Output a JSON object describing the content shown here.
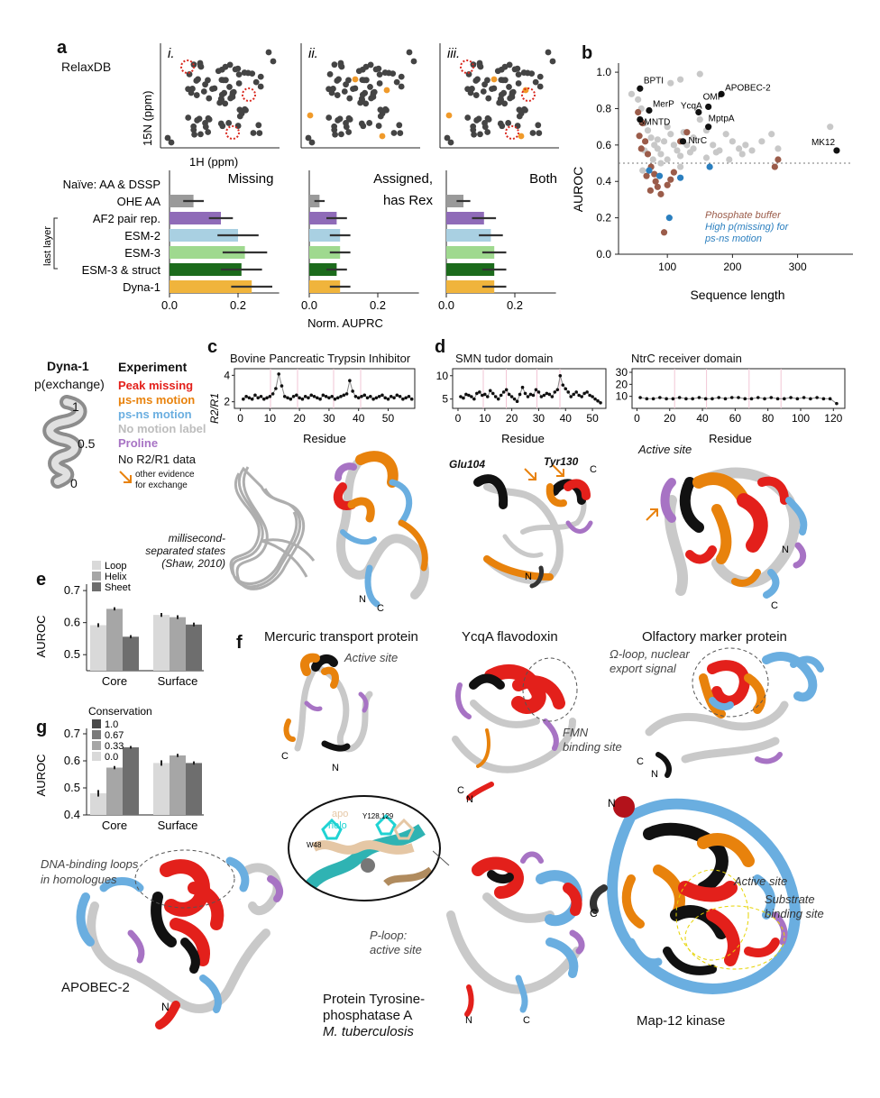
{
  "panel_labels": {
    "a": "a",
    "b": "b",
    "c": "c",
    "d": "d",
    "e": "e",
    "f": "f",
    "g": "g"
  },
  "panel_a": {
    "relaxdb_label": "RelaxDB",
    "spectrum_panels": [
      "i.",
      "ii.",
      "iii."
    ],
    "y_axis_label": "15N (ppm)",
    "x_axis_label": "1H (ppm)",
    "titles": [
      "Missing",
      "Assigned,",
      "has Rex",
      "Both"
    ],
    "methods": [
      "Naïve: AA & DSSP",
      "OHE AA",
      "AF2 pair rep.",
      "ESM-2",
      "ESM-3",
      "ESM-3 & struct",
      "Dyna-1"
    ],
    "bracket_label": "last layer",
    "x_ticks": [
      "0.0",
      "0.2"
    ],
    "x_label": "Norm. AUPRC",
    "colors": [
      "#ffffff",
      "#9a9a9a",
      "#8f6bb8",
      "#a9d0e2",
      "#9fd98f",
      "#1c6b1c",
      "#f0b43c"
    ]
  },
  "chart_data": [
    {
      "type": "bar",
      "orientation": "horizontal",
      "title": "Missing",
      "categories": [
        "Naïve: AA & DSSP",
        "OHE AA",
        "AF2 pair rep.",
        "ESM-2",
        "ESM-3",
        "ESM-3 & struct",
        "Dyna-1"
      ],
      "values": [
        0.0,
        0.07,
        0.15,
        0.2,
        0.22,
        0.21,
        0.24
      ],
      "errors": [
        0.0,
        0.03,
        0.035,
        0.06,
        0.065,
        0.06,
        0.06
      ],
      "xlim": [
        0,
        0.32
      ],
      "xlabel": "Norm. AUPRC"
    },
    {
      "type": "bar",
      "orientation": "horizontal",
      "title": "Assigned, has Rex",
      "categories": [
        "Naïve: AA & DSSP",
        "OHE AA",
        "AF2 pair rep.",
        "ESM-2",
        "ESM-3",
        "ESM-3 & struct",
        "Dyna-1"
      ],
      "values": [
        0.0,
        0.03,
        0.08,
        0.09,
        0.09,
        0.08,
        0.09
      ],
      "errors": [
        0.0,
        0.015,
        0.03,
        0.03,
        0.03,
        0.03,
        0.03
      ],
      "xlim": [
        0,
        0.32
      ],
      "xlabel": "Norm. AUPRC"
    },
    {
      "type": "bar",
      "orientation": "horizontal",
      "title": "Both",
      "categories": [
        "Naïve: AA & DSSP",
        "OHE AA",
        "AF2 pair rep.",
        "ESM-2",
        "ESM-3",
        "ESM-3 & struct",
        "Dyna-1"
      ],
      "values": [
        0.0,
        0.05,
        0.11,
        0.13,
        0.14,
        0.14,
        0.14
      ],
      "errors": [
        0.0,
        0.02,
        0.035,
        0.035,
        0.035,
        0.035,
        0.035
      ],
      "xlim": [
        0,
        0.32
      ],
      "xlabel": "Norm. AUPRC"
    },
    {
      "type": "scatter",
      "xlabel": "Sequence length",
      "ylabel": "AUROC",
      "xlim": [
        25,
        385
      ],
      "ylim": [
        0.0,
        1.05
      ],
      "x_ticks": [
        100,
        200,
        300
      ],
      "y_ticks": [
        0.0,
        0.2,
        0.4,
        0.6,
        0.8,
        1.0
      ],
      "reference_line": 0.5,
      "legend": [
        "Phosphate buffer",
        "High p(missing) for",
        "ps-ns motion"
      ],
      "labeled_points": [
        {
          "label": "BPTI",
          "x": 58,
          "y": 0.91
        },
        {
          "label": "APOBEC-2",
          "x": 183,
          "y": 0.88
        },
        {
          "label": "MerP",
          "x": 72,
          "y": 0.79
        },
        {
          "label": "OMP",
          "x": 163,
          "y": 0.81
        },
        {
          "label": "YcqA",
          "x": 148,
          "y": 0.78
        },
        {
          "label": "SMNTD",
          "x": 58,
          "y": 0.74
        },
        {
          "label": "MptpA",
          "x": 163,
          "y": 0.7
        },
        {
          "label": "NtrC",
          "x": 124,
          "y": 0.62
        },
        {
          "label": "MK12",
          "x": 360,
          "y": 0.57
        }
      ],
      "series": [
        {
          "color": "#c8c8c8",
          "x": [
            45,
            55,
            60,
            65,
            70,
            75,
            80,
            85,
            90,
            95,
            100,
            105,
            110,
            115,
            120,
            125,
            130,
            135,
            140,
            150,
            160,
            170,
            180,
            190,
            200,
            210,
            220,
            230,
            260,
            270,
            350,
            65,
            85,
            100,
            120,
            140,
            160,
            175,
            195,
            215,
            245,
            120,
            150,
            105,
            90,
            78,
            62
          ],
          "y": [
            0.88,
            0.85,
            0.8,
            0.72,
            0.68,
            0.64,
            0.6,
            0.58,
            0.55,
            0.62,
            0.7,
            0.66,
            0.6,
            0.57,
            0.54,
            0.67,
            0.6,
            0.56,
            0.64,
            0.74,
            0.68,
            0.6,
            0.57,
            0.66,
            0.62,
            0.58,
            0.6,
            0.57,
            0.66,
            0.58,
            0.7,
            0.57,
            0.63,
            0.52,
            0.48,
            0.58,
            0.53,
            0.56,
            0.52,
            0.55,
            0.62,
            0.96,
            0.99,
            0.94,
            0.5,
            0.52,
            0.46
          ]
        },
        {
          "color": "#9b5c4a",
          "x": [
            55,
            62,
            66,
            70,
            75,
            80,
            85,
            90,
            95,
            100,
            105,
            110,
            57,
            60,
            68,
            74,
            82,
            120,
            130,
            265,
            270
          ],
          "y": [
            0.78,
            0.72,
            0.62,
            0.55,
            0.48,
            0.44,
            0.37,
            0.33,
            0.12,
            0.38,
            0.41,
            0.45,
            0.65,
            0.58,
            0.43,
            0.35,
            0.4,
            0.62,
            0.67,
            0.48,
            0.52
          ]
        },
        {
          "color": "#2b7fbf",
          "x": [
            72,
            88,
            103,
            120,
            165
          ],
          "y": [
            0.46,
            0.43,
            0.2,
            0.42,
            0.48
          ]
        },
        {
          "color": "#111111",
          "x": [
            58,
            72,
            58,
            124,
            148,
            163,
            163,
            183,
            360
          ],
          "y": [
            0.91,
            0.79,
            0.74,
            0.62,
            0.78,
            0.81,
            0.7,
            0.88,
            0.57
          ]
        }
      ]
    },
    {
      "type": "line",
      "title": "Bovine Pancreatic Trypsin Inhibitor",
      "ylabel": "R2/R1",
      "xlabel": "Residue",
      "x_ticks": [
        0,
        10,
        20,
        30,
        40,
        50
      ],
      "y_ticks": [
        2,
        4
      ],
      "xlim": [
        -2,
        59
      ],
      "ylim": [
        1.5,
        4.5
      ],
      "x": [
        1,
        2,
        3,
        4,
        5,
        6,
        7,
        8,
        9,
        10,
        11,
        12,
        13,
        14,
        15,
        16,
        17,
        18,
        19,
        20,
        21,
        22,
        23,
        24,
        25,
        26,
        27,
        28,
        29,
        30,
        31,
        32,
        33,
        34,
        35,
        36,
        37,
        38,
        39,
        40,
        41,
        42,
        43,
        44,
        45,
        46,
        47,
        48,
        49,
        50,
        51,
        52,
        53,
        54,
        55,
        56,
        57,
        58
      ],
      "y": [
        2.2,
        2.4,
        2.3,
        2.2,
        2.5,
        2.3,
        2.4,
        2.2,
        2.3,
        2.4,
        2.6,
        3.0,
        4.1,
        3.2,
        2.4,
        2.3,
        2.2,
        2.4,
        2.5,
        2.3,
        2.2,
        2.4,
        2.3,
        2.5,
        2.4,
        2.3,
        2.2,
        2.5,
        2.4,
        2.3,
        2.4,
        2.2,
        2.3,
        2.4,
        2.5,
        2.6,
        3.6,
        2.8,
        2.4,
        2.3,
        2.4,
        2.5,
        2.3,
        2.4,
        2.2,
        2.3,
        2.4,
        2.5,
        2.3,
        2.2,
        2.4,
        2.3,
        2.5,
        2.4,
        2.2,
        2.3,
        2.4,
        2.2
      ]
    },
    {
      "type": "line",
      "title": "SMN tudor domain",
      "xlabel": "Residue",
      "x_ticks": [
        0,
        10,
        20,
        30,
        40,
        50
      ],
      "y_ticks": [
        5,
        10
      ],
      "xlim": [
        -2,
        55
      ],
      "ylim": [
        3,
        11.5
      ],
      "x": [
        1,
        2,
        3,
        4,
        5,
        6,
        7,
        8,
        9,
        10,
        11,
        12,
        13,
        14,
        15,
        16,
        17,
        18,
        19,
        20,
        21,
        22,
        23,
        24,
        25,
        26,
        27,
        28,
        29,
        30,
        31,
        32,
        33,
        34,
        35,
        36,
        37,
        38,
        39,
        40,
        41,
        42,
        43,
        44,
        45,
        46,
        47,
        48,
        49,
        50,
        51,
        52,
        53
      ],
      "y": [
        5.5,
        5.2,
        6.0,
        5.8,
        5.5,
        5.0,
        6.2,
        6.5,
        5.8,
        6.0,
        5.5,
        6.8,
        6.2,
        5.5,
        5.0,
        5.8,
        6.5,
        7.0,
        6.0,
        5.5,
        5.0,
        4.5,
        6.0,
        7.5,
        6.2,
        5.5,
        6.0,
        5.8,
        7.0,
        6.5,
        5.5,
        5.8,
        6.2,
        6.0,
        5.5,
        6.5,
        7.0,
        10.0,
        8.0,
        7.2,
        6.5,
        5.5,
        6.0,
        6.5,
        5.8,
        5.5,
        6.2,
        6.5,
        5.8,
        5.5,
        5.0,
        4.6,
        4.2
      ]
    },
    {
      "type": "line",
      "title": "NtrC receiver domain",
      "xlabel": "Residue",
      "x_ticks": [
        0,
        20,
        40,
        60,
        80,
        100,
        120
      ],
      "y_ticks": [
        10,
        20,
        30
      ],
      "xlim": [
        -3,
        127
      ],
      "ylim": [
        0,
        33
      ],
      "x": [
        2,
        6,
        10,
        14,
        18,
        22,
        26,
        30,
        34,
        38,
        42,
        46,
        50,
        54,
        58,
        62,
        66,
        70,
        74,
        78,
        82,
        86,
        90,
        94,
        98,
        102,
        106,
        110,
        114,
        118,
        122
      ],
      "y": [
        9,
        8,
        8,
        9,
        8,
        8,
        9,
        8,
        8,
        9,
        8,
        8,
        9,
        8,
        9,
        9,
        8,
        8,
        9,
        8,
        9,
        8,
        8,
        9,
        8,
        9,
        8,
        9,
        8,
        8,
        4
      ]
    },
    {
      "type": "bar",
      "title": "",
      "ylabel": "AUROC",
      "categories": [
        "Core",
        "Surface"
      ],
      "ylim": [
        0.45,
        0.72
      ],
      "y_ticks": [
        0.5,
        0.6,
        0.7
      ],
      "series": [
        {
          "name": "Loop",
          "values": [
            0.592,
            0.624
          ],
          "errors": [
            0.006,
            0.006
          ]
        },
        {
          "name": "Helix",
          "values": [
            0.643,
            0.617
          ],
          "errors": [
            0.005,
            0.006
          ]
        },
        {
          "name": "Sheet",
          "values": [
            0.556,
            0.594
          ],
          "errors": [
            0.005,
            0.006
          ]
        }
      ]
    },
    {
      "type": "bar",
      "title": "Conservation",
      "ylabel": "AUROC",
      "categories": [
        "Core",
        "Surface"
      ],
      "ylim": [
        0.4,
        0.72
      ],
      "y_ticks": [
        0.4,
        0.5,
        0.6,
        0.7
      ],
      "series": [
        {
          "name": "0.0",
          "values": [
            0.48,
            0.592
          ],
          "errors": [
            0.012,
            0.01
          ]
        },
        {
          "name": "0.33",
          "values": [
            0.575,
            0.62
          ],
          "errors": [
            0.006,
            0.006
          ]
        },
        {
          "name": "0.67",
          "values": [
            0.65,
            0.592
          ],
          "errors": [
            0.005,
            0.006
          ]
        },
        {
          "name": "1.0",
          "values": [
            null,
            null
          ],
          "errors": [
            null,
            null
          ]
        }
      ]
    }
  ],
  "panel_b": {
    "x_label": "Sequence length",
    "y_label": "AUROC",
    "x_ticks": [
      "100",
      "200",
      "300"
    ],
    "y_ticks": [
      "0.0",
      "0.2",
      "0.4",
      "0.6",
      "0.8",
      "1.0"
    ],
    "labels": [
      "BPTI",
      "APOBEC-2",
      "MerP",
      "OMP",
      "YcqA",
      "SMNTD",
      "MptpA",
      "NtrC",
      "MK12"
    ],
    "legend": [
      "Phosphate buffer",
      "High p(missing) for",
      "ps-ns motion"
    ],
    "colors": {
      "gray": "#c8c8c8",
      "brown": "#9b5c4a",
      "blue": "#2b7fbf",
      "black": "#111111"
    }
  },
  "legend_left": {
    "title_1": "Dyna-1",
    "title_2": "p(exchange)",
    "scale": [
      "1",
      "0.5",
      "0"
    ],
    "experiment_title": "Experiment",
    "items": [
      {
        "label": "Peak missing",
        "color": "#e3201b"
      },
      {
        "label": "μs-ms motion",
        "color": "#e8820c"
      },
      {
        "label": "ps-ns motion",
        "color": "#6aaee0"
      },
      {
        "label": "No motion label",
        "color": "#bdbdbd"
      },
      {
        "label": "Proline",
        "color": "#a773c4"
      }
    ],
    "no_data": "No R2/R1 data",
    "other_evidence_1": "other evidence",
    "other_evidence_2": "for exchange"
  },
  "panel_c": {
    "title": "Bovine Pancreatic Trypsin Inhibitor",
    "ylabel": "R2/R1",
    "xlabel": "Residue",
    "x_ticks": [
      "0",
      "10",
      "20",
      "30",
      "40",
      "50"
    ],
    "y_ticks": [
      "2",
      "4"
    ],
    "annotation": [
      "millisecond-",
      "separated states",
      "(Shaw, 2010)"
    ],
    "termini": [
      "N",
      "C"
    ]
  },
  "panel_d": {
    "smn_title": "SMN tudor domain",
    "smn_ticks": [
      "0",
      "10",
      "20",
      "30",
      "40",
      "50"
    ],
    "smn_yticks": [
      "5",
      "10"
    ],
    "ntrc_title": "NtrC receiver domain",
    "ntrc_ticks": [
      "0",
      "20",
      "40",
      "60",
      "80",
      "100",
      "120"
    ],
    "ntrc_yticks": [
      "10",
      "20",
      "30"
    ],
    "xlabel": "Residue",
    "smn_labels": [
      "Glu104",
      "Tyr130",
      "C",
      "N"
    ],
    "ntrc_labels": [
      "Active site",
      "N",
      "C"
    ]
  },
  "panel_e": {
    "ylabel": "AUROC",
    "y_ticks": [
      "0.5",
      "0.6",
      "0.7"
    ],
    "categories": [
      "Core",
      "Surface"
    ],
    "legend": [
      "Loop",
      "Helix",
      "Sheet"
    ],
    "colors": [
      "#d9d9d9",
      "#a6a6a6",
      "#6e6e6e"
    ]
  },
  "panel_g": {
    "ylabel": "AUROC",
    "y_ticks": [
      "0.4",
      "0.5",
      "0.6",
      "0.7"
    ],
    "categories": [
      "Core",
      "Surface"
    ],
    "legend_title": "Conservation",
    "legend": [
      "1.0",
      "0.67",
      "0.33",
      "0.0"
    ],
    "colors": [
      "#4a4a4a",
      "#7a7a7a",
      "#a6a6a6",
      "#d9d9d9"
    ]
  },
  "panel_f": {
    "mercuric": {
      "title": "Mercuric transport protein",
      "annotation": "Active site",
      "termini": [
        "C",
        "N"
      ]
    },
    "ycqa": {
      "title": "YcqA flavodoxin",
      "annotation": [
        "FMN",
        "binding site"
      ],
      "termini": [
        "C",
        "N"
      ]
    },
    "olfactory": {
      "title": "Olfactory marker protein",
      "annotation": [
        "Ω-loop, nuclear",
        "export signal"
      ],
      "termini": [
        "C",
        "N"
      ]
    },
    "inset": {
      "apo": "apo",
      "holo": "holo",
      "w48": "W48",
      "y128": "Y128,129"
    },
    "ptp": {
      "title": [
        "Protein Tyrosine-",
        "phosphatase A",
        "M. tuberculosis"
      ],
      "annotation": [
        "P-loop:",
        "active site"
      ],
      "termini": [
        "N",
        "C"
      ]
    },
    "mapk": {
      "title": "Map-12 kinase",
      "annotation": [
        "Active site",
        "Substrate",
        "binding site"
      ],
      "termini": [
        "N",
        "C"
      ]
    }
  },
  "apobec": {
    "annotation": [
      "DNA-binding loops",
      "in homologues"
    ],
    "title": "APOBEC-2",
    "termini": [
      "N"
    ]
  }
}
